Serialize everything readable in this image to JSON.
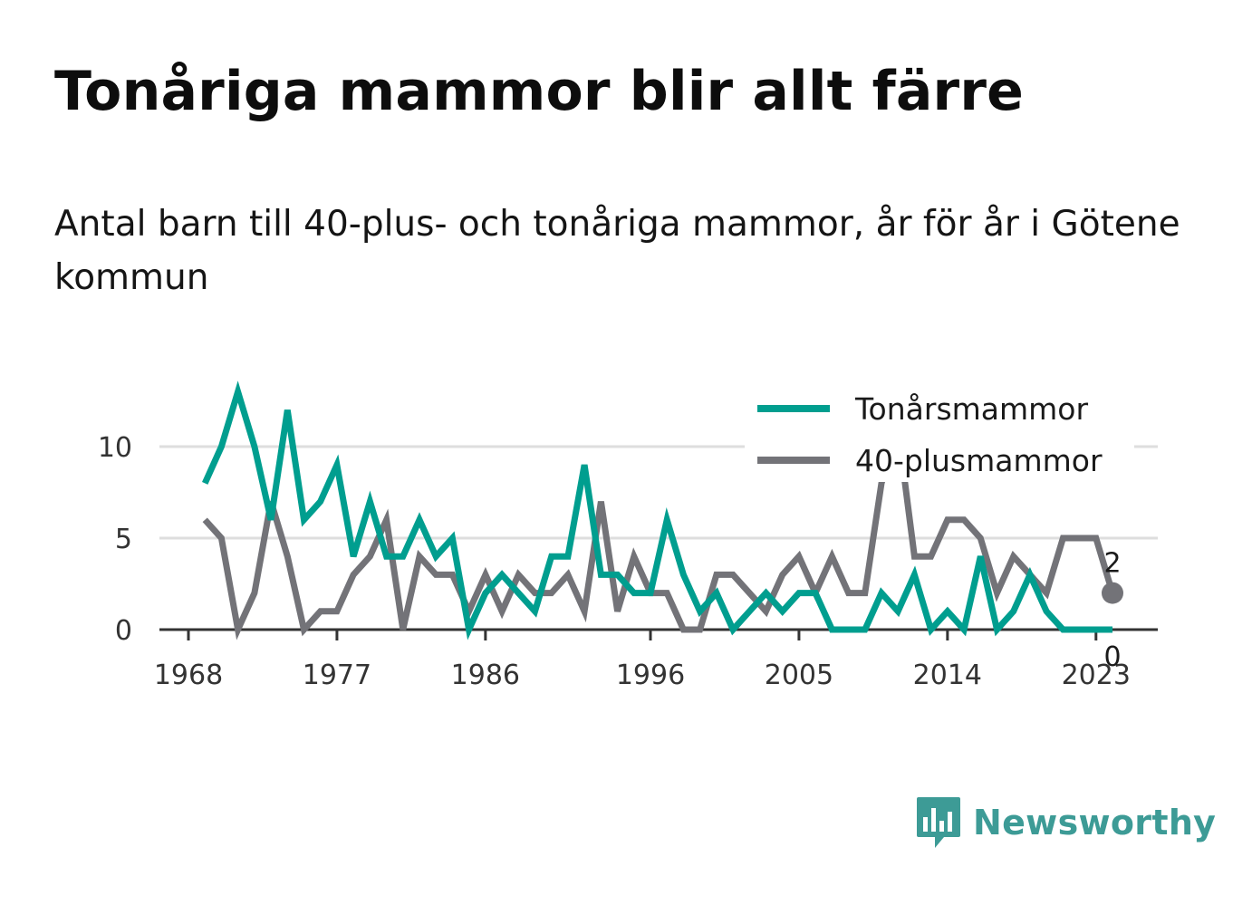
{
  "title": "Tonåriga mammor blir allt färre",
  "subtitle": "Antal barn till 40-plus- och tonåriga mammor, år för år i Götene kommun",
  "brand": {
    "name": "Newsworthy",
    "icon": "bar-chart-logo-icon",
    "color": "#3d9b96"
  },
  "chart_data": {
    "type": "line",
    "x": [
      1969,
      1970,
      1971,
      1972,
      1973,
      1974,
      1975,
      1976,
      1977,
      1978,
      1979,
      1980,
      1981,
      1982,
      1983,
      1984,
      1985,
      1986,
      1987,
      1988,
      1989,
      1990,
      1991,
      1992,
      1993,
      1994,
      1995,
      1996,
      1997,
      1998,
      1999,
      2000,
      2001,
      2002,
      2003,
      2004,
      2005,
      2006,
      2007,
      2008,
      2009,
      2010,
      2011,
      2012,
      2013,
      2014,
      2015,
      2016,
      2017,
      2018,
      2019,
      2020,
      2021,
      2022,
      2023,
      2024
    ],
    "series": [
      {
        "name": "Tonårsmammor",
        "color": "#009e8f",
        "values": [
          8,
          10,
          13,
          10,
          6,
          12,
          6,
          7,
          9,
          4,
          7,
          4,
          4,
          6,
          4,
          5,
          0,
          2,
          3,
          2,
          1,
          4,
          4,
          9,
          3,
          3,
          2,
          2,
          6,
          3,
          1,
          2,
          0,
          1,
          2,
          1,
          2,
          2,
          0,
          0,
          0,
          2,
          1,
          3,
          0,
          1,
          0,
          4,
          0,
          1,
          3,
          1,
          0,
          0,
          0,
          0
        ]
      },
      {
        "name": "40-plusmammor",
        "color": "#737378",
        "values": [
          6,
          5,
          0,
          2,
          7,
          4,
          0,
          1,
          1,
          3,
          4,
          6,
          0,
          4,
          3,
          3,
          1,
          3,
          1,
          3,
          2,
          2,
          3,
          1,
          7,
          1,
          4,
          2,
          2,
          0,
          0,
          3,
          3,
          2,
          1,
          3,
          4,
          2,
          4,
          2,
          2,
          8,
          11,
          4,
          4,
          6,
          6,
          5,
          2,
          4,
          3,
          2,
          5,
          5,
          5,
          2
        ]
      }
    ],
    "x_ticks": [
      "1968",
      "1977",
      "1986",
      "1996",
      "2005",
      "2014",
      "2023"
    ],
    "y_ticks": [
      "0",
      "5",
      "10"
    ],
    "ylim": [
      0,
      13
    ],
    "grid": true,
    "legend_position": "top-right",
    "end_labels": {
      "40-plusmammor": "2",
      "Tonårsmammor": "0"
    }
  }
}
